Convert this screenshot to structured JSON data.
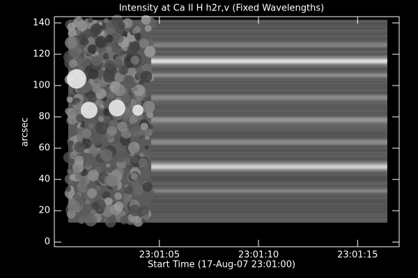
{
  "chart_data": {
    "type": "image",
    "title": "Intensity at Ca II H h2r,v (Fixed Wavelengths)",
    "x_label": "Start Time (17-Aug-07 23:01:00)",
    "y_label": "arcsec",
    "colormap": "gray",
    "extent": [
      0.4,
      16.5,
      12.4,
      142
    ],
    "xlim": [
      -0.3,
      17.1
    ],
    "xticks": [
      {
        "value": 5,
        "label": "23:01:05"
      },
      {
        "value": 10,
        "label": "23:01:10"
      },
      {
        "value": 15,
        "label": "23:01:15"
      }
    ],
    "ylim": [
      -3,
      144
    ],
    "yticks": [
      0,
      20,
      40,
      60,
      80,
      100,
      120,
      140
    ]
  }
}
